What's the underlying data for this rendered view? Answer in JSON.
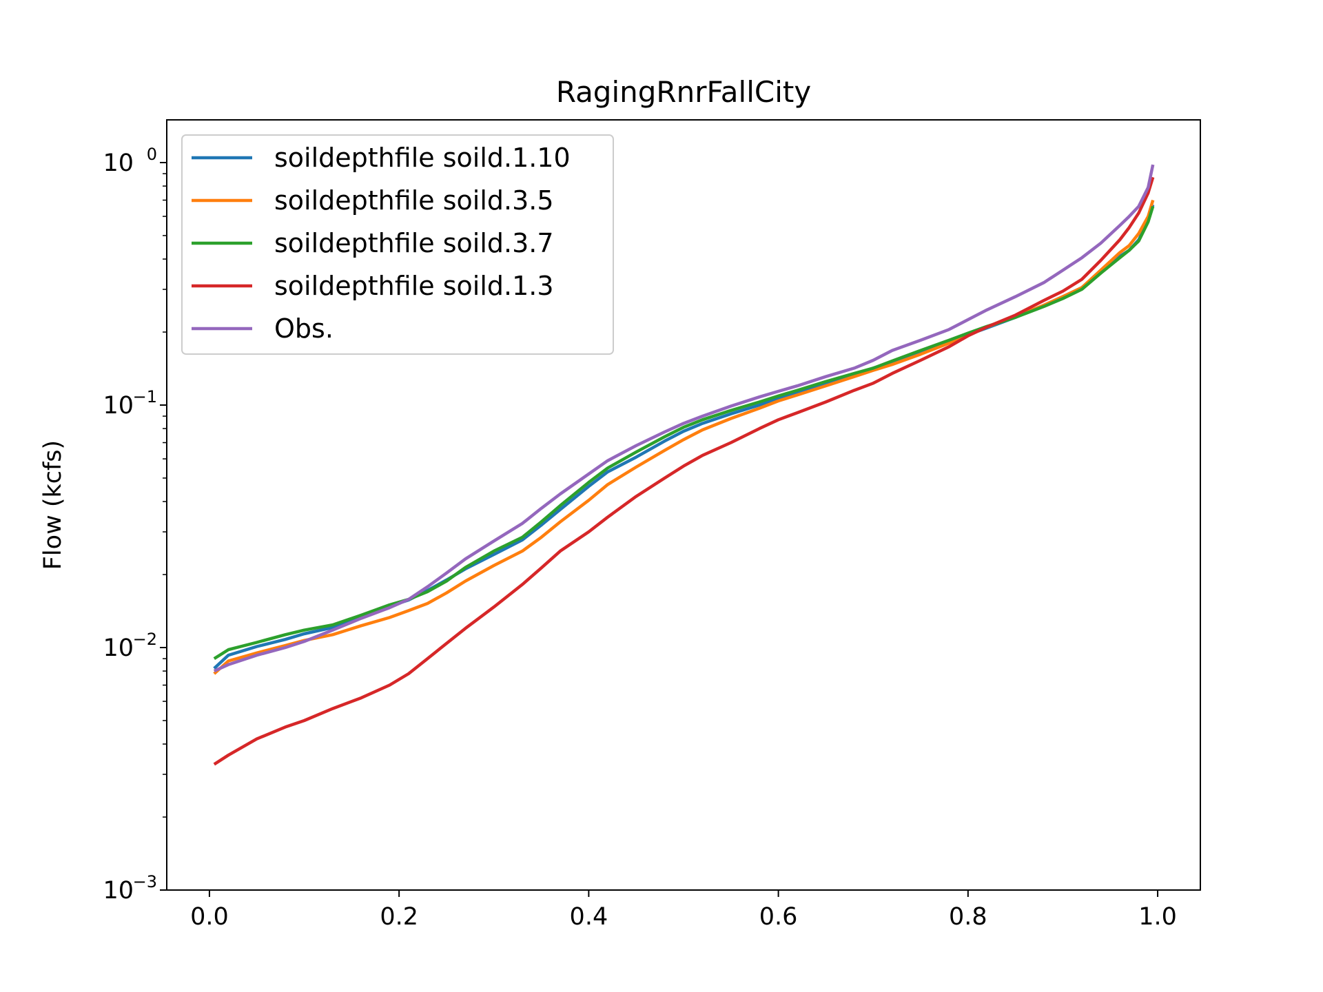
{
  "chart_data": {
    "type": "line",
    "title": "RagingRnrFallCity",
    "xlabel": "",
    "ylabel": "Flow (kcfs)",
    "yscale": "log",
    "xlim": [
      -0.045,
      1.045
    ],
    "ylim": [
      0.001,
      1.5
    ],
    "x_ticks": [
      {
        "value": 0.0,
        "label": "0.0"
      },
      {
        "value": 0.2,
        "label": "0.2"
      },
      {
        "value": 0.4,
        "label": "0.4"
      },
      {
        "value": 0.6,
        "label": "0.6"
      },
      {
        "value": 0.8,
        "label": "0.8"
      },
      {
        "value": 1.0,
        "label": "1.0"
      }
    ],
    "y_ticks": [
      {
        "value": 0.001,
        "base": "10",
        "exp": "−3"
      },
      {
        "value": 0.01,
        "base": "10",
        "exp": "−2"
      },
      {
        "value": 0.1,
        "base": "10",
        "exp": "−1"
      },
      {
        "value": 1,
        "base": "10",
        "exp": "0"
      }
    ],
    "grid": false,
    "legend_position": "upper-left",
    "series": [
      {
        "name": "soildepthfile soild.1.10",
        "color": "#1f77b4",
        "points": [
          [
            0.005,
            0.0082
          ],
          [
            0.02,
            0.0093
          ],
          [
            0.05,
            0.0101
          ],
          [
            0.08,
            0.0108
          ],
          [
            0.1,
            0.0114
          ],
          [
            0.13,
            0.0121
          ],
          [
            0.16,
            0.0133
          ],
          [
            0.19,
            0.0148
          ],
          [
            0.21,
            0.0157
          ],
          [
            0.23,
            0.0172
          ],
          [
            0.25,
            0.019
          ],
          [
            0.27,
            0.0211
          ],
          [
            0.3,
            0.0242
          ],
          [
            0.33,
            0.0278
          ],
          [
            0.35,
            0.032
          ],
          [
            0.37,
            0.0371
          ],
          [
            0.4,
            0.0462
          ],
          [
            0.42,
            0.053
          ],
          [
            0.45,
            0.061
          ],
          [
            0.48,
            0.071
          ],
          [
            0.5,
            0.078
          ],
          [
            0.52,
            0.084
          ],
          [
            0.55,
            0.092
          ],
          [
            0.58,
            0.1
          ],
          [
            0.6,
            0.107
          ],
          [
            0.62,
            0.113
          ],
          [
            0.65,
            0.123
          ],
          [
            0.68,
            0.134
          ],
          [
            0.7,
            0.142
          ],
          [
            0.72,
            0.151
          ],
          [
            0.75,
            0.165
          ],
          [
            0.78,
            0.182
          ],
          [
            0.8,
            0.195
          ],
          [
            0.82,
            0.208
          ],
          [
            0.85,
            0.23
          ],
          [
            0.88,
            0.258
          ],
          [
            0.9,
            0.28
          ],
          [
            0.92,
            0.305
          ],
          [
            0.94,
            0.355
          ],
          [
            0.96,
            0.41
          ],
          [
            0.97,
            0.435
          ],
          [
            0.98,
            0.48
          ],
          [
            0.99,
            0.58
          ],
          [
            0.995,
            0.67
          ]
        ]
      },
      {
        "name": "soildepthfile soild.3.5",
        "color": "#ff7f0e",
        "points": [
          [
            0.005,
            0.0078
          ],
          [
            0.02,
            0.0088
          ],
          [
            0.05,
            0.0095
          ],
          [
            0.08,
            0.0102
          ],
          [
            0.1,
            0.0107
          ],
          [
            0.13,
            0.0113
          ],
          [
            0.16,
            0.0123
          ],
          [
            0.19,
            0.0133
          ],
          [
            0.21,
            0.0142
          ],
          [
            0.23,
            0.0152
          ],
          [
            0.25,
            0.0168
          ],
          [
            0.27,
            0.0188
          ],
          [
            0.3,
            0.0218
          ],
          [
            0.33,
            0.025
          ],
          [
            0.35,
            0.0285
          ],
          [
            0.37,
            0.033
          ],
          [
            0.4,
            0.0405
          ],
          [
            0.42,
            0.047
          ],
          [
            0.45,
            0.0555
          ],
          [
            0.48,
            0.065
          ],
          [
            0.5,
            0.072
          ],
          [
            0.52,
            0.079
          ],
          [
            0.55,
            0.088
          ],
          [
            0.58,
            0.097
          ],
          [
            0.6,
            0.104
          ],
          [
            0.62,
            0.11
          ],
          [
            0.65,
            0.12
          ],
          [
            0.68,
            0.131
          ],
          [
            0.7,
            0.139
          ],
          [
            0.72,
            0.147
          ],
          [
            0.75,
            0.162
          ],
          [
            0.78,
            0.18
          ],
          [
            0.8,
            0.195
          ],
          [
            0.82,
            0.21
          ],
          [
            0.85,
            0.232
          ],
          [
            0.88,
            0.258
          ],
          [
            0.9,
            0.28
          ],
          [
            0.92,
            0.305
          ],
          [
            0.94,
            0.36
          ],
          [
            0.96,
            0.425
          ],
          [
            0.97,
            0.455
          ],
          [
            0.98,
            0.51
          ],
          [
            0.99,
            0.6
          ],
          [
            0.995,
            0.7
          ]
        ]
      },
      {
        "name": "soildepthfile soild.3.7",
        "color": "#2ca02c",
        "points": [
          [
            0.005,
            0.009
          ],
          [
            0.02,
            0.0098
          ],
          [
            0.05,
            0.0105
          ],
          [
            0.08,
            0.0113
          ],
          [
            0.1,
            0.0118
          ],
          [
            0.13,
            0.0124
          ],
          [
            0.16,
            0.0136
          ],
          [
            0.19,
            0.015
          ],
          [
            0.21,
            0.0158
          ],
          [
            0.23,
            0.017
          ],
          [
            0.25,
            0.0188
          ],
          [
            0.27,
            0.0214
          ],
          [
            0.3,
            0.025
          ],
          [
            0.33,
            0.0285
          ],
          [
            0.35,
            0.033
          ],
          [
            0.37,
            0.0385
          ],
          [
            0.4,
            0.048
          ],
          [
            0.42,
            0.055
          ],
          [
            0.45,
            0.064
          ],
          [
            0.48,
            0.074
          ],
          [
            0.5,
            0.081
          ],
          [
            0.52,
            0.087
          ],
          [
            0.55,
            0.095
          ],
          [
            0.58,
            0.103
          ],
          [
            0.6,
            0.109
          ],
          [
            0.62,
            0.115
          ],
          [
            0.65,
            0.125
          ],
          [
            0.68,
            0.135
          ],
          [
            0.7,
            0.142
          ],
          [
            0.72,
            0.152
          ],
          [
            0.75,
            0.168
          ],
          [
            0.78,
            0.185
          ],
          [
            0.8,
            0.198
          ],
          [
            0.82,
            0.211
          ],
          [
            0.85,
            0.23
          ],
          [
            0.88,
            0.255
          ],
          [
            0.9,
            0.275
          ],
          [
            0.92,
            0.3
          ],
          [
            0.94,
            0.35
          ],
          [
            0.96,
            0.405
          ],
          [
            0.97,
            0.435
          ],
          [
            0.98,
            0.475
          ],
          [
            0.99,
            0.57
          ],
          [
            0.995,
            0.66
          ]
        ]
      },
      {
        "name": "soildepthfile soild.1.3",
        "color": "#d62728",
        "points": [
          [
            0.005,
            0.0033
          ],
          [
            0.02,
            0.0036
          ],
          [
            0.05,
            0.0042
          ],
          [
            0.08,
            0.0047
          ],
          [
            0.1,
            0.005
          ],
          [
            0.13,
            0.0056
          ],
          [
            0.16,
            0.0062
          ],
          [
            0.19,
            0.007
          ],
          [
            0.21,
            0.0078
          ],
          [
            0.23,
            0.009
          ],
          [
            0.25,
            0.0104
          ],
          [
            0.27,
            0.012
          ],
          [
            0.3,
            0.0147
          ],
          [
            0.33,
            0.0182
          ],
          [
            0.35,
            0.0213
          ],
          [
            0.37,
            0.025
          ],
          [
            0.4,
            0.03
          ],
          [
            0.42,
            0.0345
          ],
          [
            0.45,
            0.042
          ],
          [
            0.48,
            0.05
          ],
          [
            0.5,
            0.056
          ],
          [
            0.52,
            0.062
          ],
          [
            0.55,
            0.07
          ],
          [
            0.58,
            0.08
          ],
          [
            0.6,
            0.087
          ],
          [
            0.62,
            0.093
          ],
          [
            0.65,
            0.103
          ],
          [
            0.68,
            0.115
          ],
          [
            0.7,
            0.123
          ],
          [
            0.72,
            0.135
          ],
          [
            0.75,
            0.153
          ],
          [
            0.78,
            0.174
          ],
          [
            0.8,
            0.193
          ],
          [
            0.82,
            0.21
          ],
          [
            0.85,
            0.235
          ],
          [
            0.88,
            0.27
          ],
          [
            0.9,
            0.295
          ],
          [
            0.92,
            0.33
          ],
          [
            0.94,
            0.395
          ],
          [
            0.96,
            0.48
          ],
          [
            0.97,
            0.54
          ],
          [
            0.98,
            0.62
          ],
          [
            0.99,
            0.75
          ],
          [
            0.995,
            0.87
          ]
        ]
      },
      {
        "name": "Obs.",
        "color": "#9467bd",
        "points": [
          [
            0.005,
            0.008
          ],
          [
            0.02,
            0.0085
          ],
          [
            0.05,
            0.0093
          ],
          [
            0.08,
            0.01
          ],
          [
            0.1,
            0.0106
          ],
          [
            0.13,
            0.0118
          ],
          [
            0.16,
            0.0132
          ],
          [
            0.19,
            0.0146
          ],
          [
            0.21,
            0.0158
          ],
          [
            0.23,
            0.0178
          ],
          [
            0.25,
            0.0203
          ],
          [
            0.27,
            0.0232
          ],
          [
            0.3,
            0.0275
          ],
          [
            0.33,
            0.0325
          ],
          [
            0.35,
            0.0375
          ],
          [
            0.37,
            0.043
          ],
          [
            0.4,
            0.052
          ],
          [
            0.42,
            0.059
          ],
          [
            0.45,
            0.068
          ],
          [
            0.48,
            0.0775
          ],
          [
            0.5,
            0.084
          ],
          [
            0.52,
            0.09
          ],
          [
            0.55,
            0.099
          ],
          [
            0.58,
            0.108
          ],
          [
            0.6,
            0.114
          ],
          [
            0.62,
            0.12
          ],
          [
            0.65,
            0.131
          ],
          [
            0.68,
            0.142
          ],
          [
            0.7,
            0.153
          ],
          [
            0.72,
            0.168
          ],
          [
            0.75,
            0.185
          ],
          [
            0.78,
            0.205
          ],
          [
            0.8,
            0.225
          ],
          [
            0.82,
            0.247
          ],
          [
            0.85,
            0.28
          ],
          [
            0.88,
            0.32
          ],
          [
            0.9,
            0.36
          ],
          [
            0.92,
            0.405
          ],
          [
            0.94,
            0.465
          ],
          [
            0.96,
            0.55
          ],
          [
            0.97,
            0.6
          ],
          [
            0.98,
            0.66
          ],
          [
            0.99,
            0.79
          ],
          [
            0.995,
            0.98
          ]
        ]
      }
    ]
  }
}
